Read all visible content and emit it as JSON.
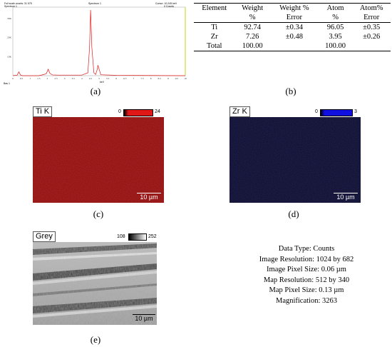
{
  "spectrum": {
    "header_left": [
      "Full scale counts: 31 575",
      "Spectrum 1"
    ],
    "header_right": [
      "Cursor: 10.245 keV",
      "0 Counts"
    ],
    "x_ticks": [
      "0",
      "0.5",
      "1",
      "1.5",
      "2",
      "2.5",
      "3",
      "3.5",
      "4",
      "4.5",
      "5",
      "5.5",
      "6",
      "6.5",
      "7",
      "7.5",
      "8",
      "8.5",
      "9",
      "9.5",
      "10"
    ],
    "y_ticks": [
      "30K",
      "20K",
      "10K"
    ],
    "x_unit": "keV",
    "corner_label": "Bas  1"
  },
  "chart_data": {
    "type": "line",
    "title": "",
    "xlabel": "keV",
    "ylabel": "",
    "xlim": [
      0,
      10
    ],
    "ylim": [
      0,
      36000
    ],
    "series": [
      {
        "x": [
          0.0,
          0.25,
          0.35,
          0.45,
          0.55,
          1.5,
          1.8,
          1.95,
          2.05,
          2.15,
          2.3,
          2.6,
          4.0,
          4.35,
          4.45,
          4.51,
          4.58,
          4.7,
          4.8,
          4.9,
          4.93,
          5.0,
          5.1,
          6.0,
          8.0,
          10.0
        ],
        "values": [
          0,
          300,
          2000,
          300,
          0,
          0,
          600,
          1200,
          3400,
          1200,
          400,
          300,
          300,
          1500,
          15000,
          34500,
          15000,
          1500,
          600,
          3500,
          5500,
          3500,
          500,
          200,
          100,
          0
        ]
      }
    ]
  },
  "table": {
    "headers": [
      [
        "Element",
        "Weight",
        "Weight %",
        "Atom",
        "Atom%"
      ],
      [
        "",
        "%",
        "Error",
        "%",
        "Error"
      ]
    ],
    "rows": [
      [
        "Ti",
        "92.74",
        "±0.34",
        "96.05",
        "±0.35"
      ],
      [
        "Zr",
        "7.26",
        "±0.48",
        "3.95",
        "±0.26"
      ],
      [
        "Total",
        "100.00",
        "",
        "100.00",
        ""
      ]
    ]
  },
  "captions": {
    "a": "(a)",
    "b": "(b)",
    "c": "(c)",
    "d": "(d)",
    "e": "(e)"
  },
  "maps": {
    "ti": {
      "label": "Ti K",
      "min": "0",
      "max": "24",
      "scale": "10 µm",
      "color": "#e01818",
      "bg": "#7a0a0a"
    },
    "zr": {
      "label": "Zr K",
      "min": "0",
      "max": "3",
      "scale": "10 µm",
      "color": "#1010e0",
      "bg": "#07072a"
    },
    "grey": {
      "label": "Grey",
      "min": "108",
      "max": "252",
      "scale": "10 µm"
    }
  },
  "info_lines": [
    "Data Type: Counts",
    "Image Resolution: 1024 by 682",
    "Image Pixel Size: 0.06 µm",
    "Map Resolution: 512 by 340",
    "Map Pixel Size: 0.13 µm",
    "Magnification: 3263"
  ]
}
